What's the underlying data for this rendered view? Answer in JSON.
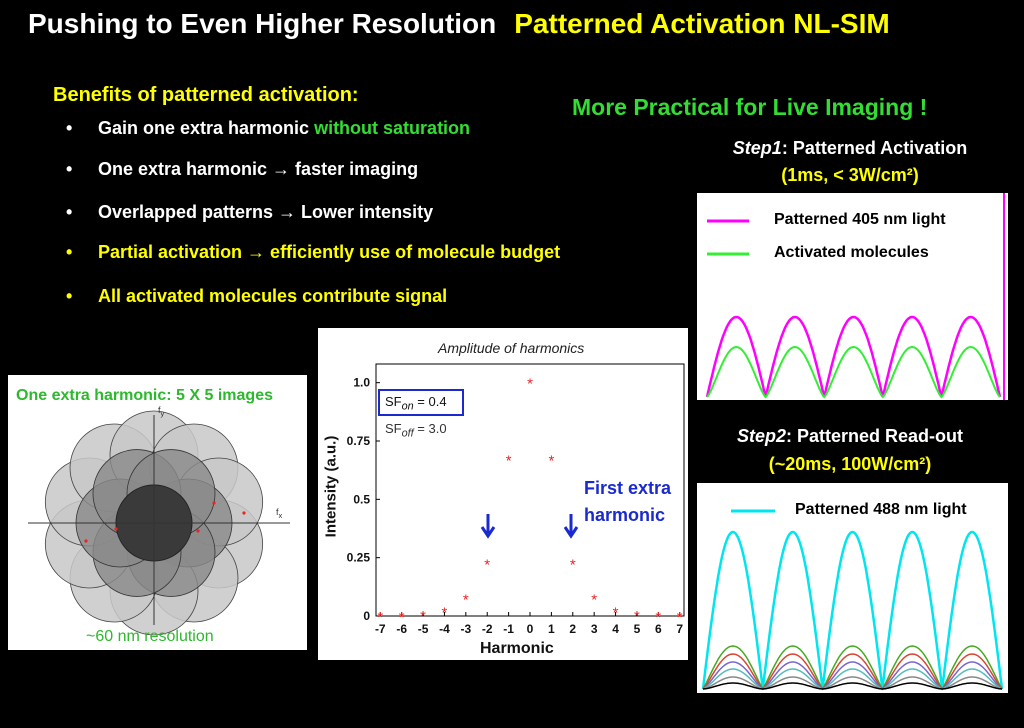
{
  "title": {
    "left": "Pushing to Even Higher Resolution",
    "right": "Patterned Activation NL-SIM"
  },
  "benefits": {
    "heading": "Benefits of patterned activation:",
    "bullet_symbol": "•",
    "items": [
      {
        "a": "Gain one extra harmonic ",
        "b": "without saturation"
      },
      {
        "a": "One extra harmonic → faster imaging",
        "b": ""
      },
      {
        "a": "Overlapped patterns → Lower intensity",
        "b": ""
      },
      {
        "a": "Partial activation  →  efficiently use of molecule budget",
        "b": ""
      },
      {
        "a": "All activated molecules contribute signal",
        "b": ""
      }
    ]
  },
  "practical": "More Practical for Live Imaging !",
  "step1": {
    "label_em": "Step1",
    "label_rest": ": Patterned Activation",
    "sub": "(1ms, < 3W/cm²)",
    "legend": [
      "Patterned 405 nm light",
      "Activated molecules"
    ]
  },
  "step2": {
    "label_em": "Step2",
    "label_rest": ": Patterned Read-out",
    "sub": "(~20ms, 100W/cm²)",
    "legend": [
      "Patterned 488 nm light"
    ]
  },
  "fourier": {
    "title": "One extra harmonic: 5 X 5 images",
    "caption": "~60 nm resolution",
    "fx": "f",
    "fx_sub": "x",
    "fy": "f",
    "fy_sub": "y"
  },
  "chart_data": {
    "type": "scatter",
    "title": "Amplitude of harmonics",
    "xlabel": "Harmonic",
    "ylabel": "Intensity (a.u.)",
    "x": [
      -7,
      -6,
      -5,
      -4,
      -3,
      -2,
      -1,
      0,
      1,
      2,
      3,
      4,
      5,
      6,
      7
    ],
    "y": [
      0.0,
      0.0,
      0.005,
      0.02,
      0.075,
      0.225,
      0.67,
      1.0,
      0.67,
      0.225,
      0.075,
      0.02,
      0.005,
      0.0,
      0.0
    ],
    "xlim": [
      -7.2,
      7.2
    ],
    "ylim": [
      0,
      1.08
    ],
    "xticks": [
      "-7",
      "-6",
      "-5",
      "-4",
      "-3",
      "-2",
      "-1",
      "0",
      "1",
      "2",
      "3",
      "4",
      "5",
      "6",
      "7"
    ],
    "yticks": [
      "0",
      "0.25",
      "0.5",
      "0.75",
      "1.0"
    ],
    "sf_on": "SF",
    "sf_on_sub": "on",
    "sf_on_val": " = 0.4",
    "sf_off": "SF",
    "sf_off_sub": "off",
    "sf_off_val": " = 3.0",
    "annotation_line1": "First extra",
    "annotation_line2": "harmonic",
    "marker_color": "#ee2222",
    "arrow_color": "#1a2ad0"
  },
  "colors": {
    "magenta": "#ff00ff",
    "green": "#33ee33",
    "cyan": "#00e5ee",
    "title_yellow": "#ffff00",
    "accent_green": "#33dd33"
  }
}
